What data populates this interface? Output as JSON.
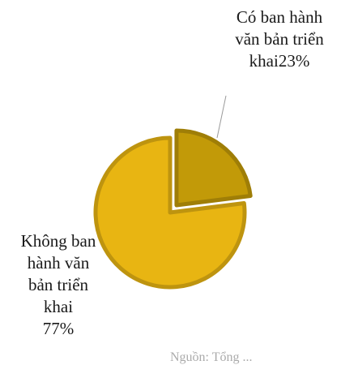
{
  "chart_data": {
    "type": "pie",
    "slices": [
      {
        "label": "Có ban hành\nvăn bản triển\nkhai23%",
        "value": 23,
        "color": "#c29a08",
        "exploded": true
      },
      {
        "label": "Không ban\nhành văn\nbản triển\nkhai\n77%",
        "value": 77,
        "color": "#e8b512",
        "exploded": false
      }
    ],
    "title": "",
    "legend": "none"
  },
  "footer": {
    "source_text": "Nguồn: Tổng ..."
  }
}
